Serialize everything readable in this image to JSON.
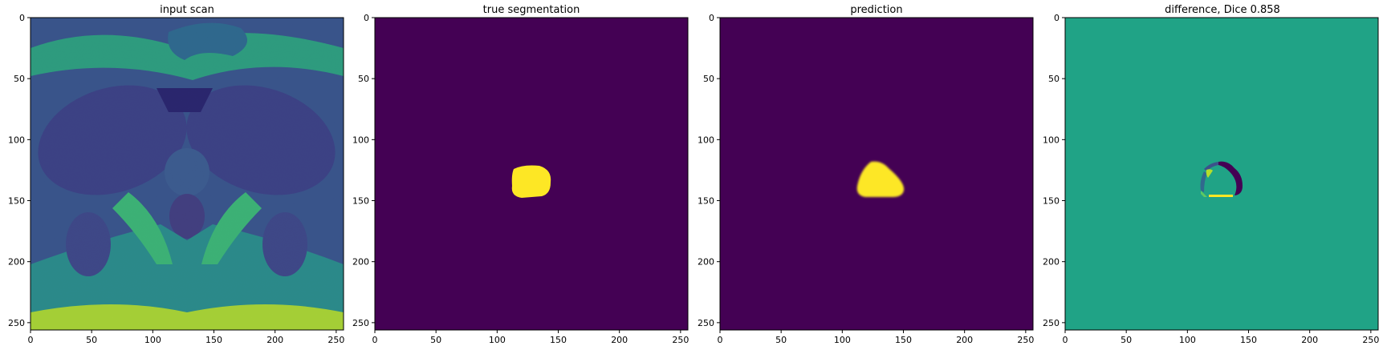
{
  "figure": {
    "panels": [
      {
        "title": "input scan",
        "colormap": "viridis",
        "x_ticks": [
          "0",
          "50",
          "100",
          "150",
          "200",
          "250"
        ],
        "y_ticks": [
          "0",
          "50",
          "100",
          "150",
          "200",
          "250"
        ],
        "extent": [
          0,
          256
        ]
      },
      {
        "title": "true segmentation",
        "colormap": "viridis",
        "x_ticks": [
          "0",
          "50",
          "100",
          "150",
          "200",
          "250"
        ],
        "y_ticks": [
          "0",
          "50",
          "100",
          "150",
          "200",
          "250"
        ],
        "extent": [
          0,
          256
        ]
      },
      {
        "title": "prediction",
        "colormap": "viridis",
        "x_ticks": [
          "0",
          "50",
          "100",
          "150",
          "200",
          "250"
        ],
        "y_ticks": [
          "0",
          "50",
          "100",
          "150",
          "200",
          "250"
        ],
        "extent": [
          0,
          256
        ]
      },
      {
        "title": "difference, Dice 0.858",
        "colormap": "viridis",
        "x_ticks": [
          "0",
          "50",
          "100",
          "150",
          "200",
          "250"
        ],
        "y_ticks": [
          "0",
          "50",
          "100",
          "150",
          "200",
          "250"
        ],
        "extent": [
          0,
          256
        ]
      }
    ],
    "colors": {
      "viridis_dark": "#440154",
      "viridis_mid": "#21918c",
      "viridis_green": "#22a784",
      "viridis_yellow": "#fde725",
      "scan_bg": "#3b528b",
      "scan_muscle": "#3e4989",
      "scan_fat": "#5ec962"
    }
  }
}
